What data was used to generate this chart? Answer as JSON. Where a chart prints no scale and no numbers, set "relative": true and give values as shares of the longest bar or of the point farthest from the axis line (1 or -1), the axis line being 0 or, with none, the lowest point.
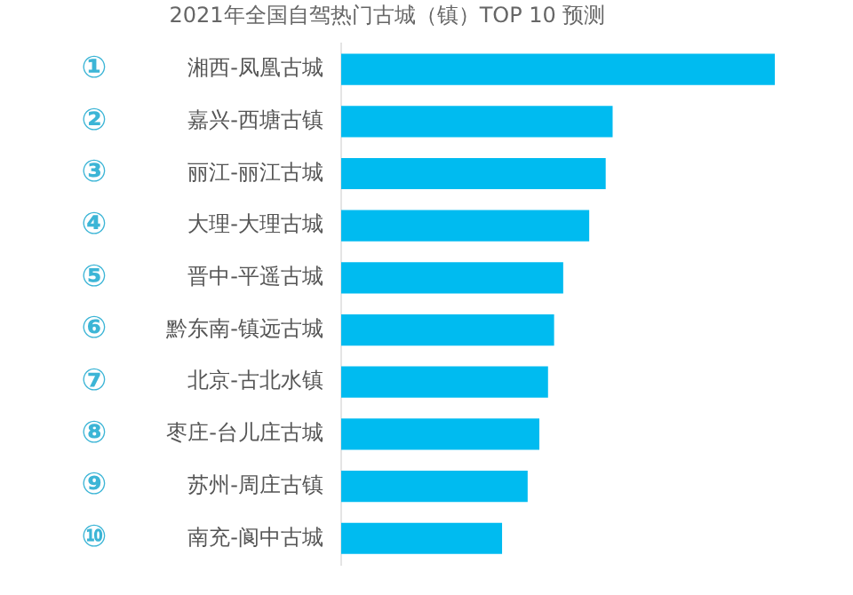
{
  "chart_data": {
    "type": "bar",
    "orientation": "horizontal",
    "relative": true,
    "title": "2021年全国自驾热门古城（镇）TOP 10 预测",
    "categories": [
      "湘西-凤凰古城",
      "嘉兴-西塘古镇",
      "丽江-丽江古城",
      "大理-大理古城",
      "晋中-平遥古城",
      "黔东南-镇远古城",
      "北京-古北水镇",
      "枣庄-台儿庄古城",
      "苏州-周庄古镇",
      "南充-阆中古城"
    ],
    "values": [
      1,
      0.626,
      0.61,
      0.572,
      0.512,
      0.491,
      0.477,
      0.457,
      0.43,
      0.371
    ],
    "color": "#00bbf0",
    "annotations": [
      "①",
      "②",
      "③",
      "④",
      "⑤",
      "⑥",
      "⑦",
      "⑧",
      "⑨",
      "⑩"
    ],
    "legend": false
  }
}
